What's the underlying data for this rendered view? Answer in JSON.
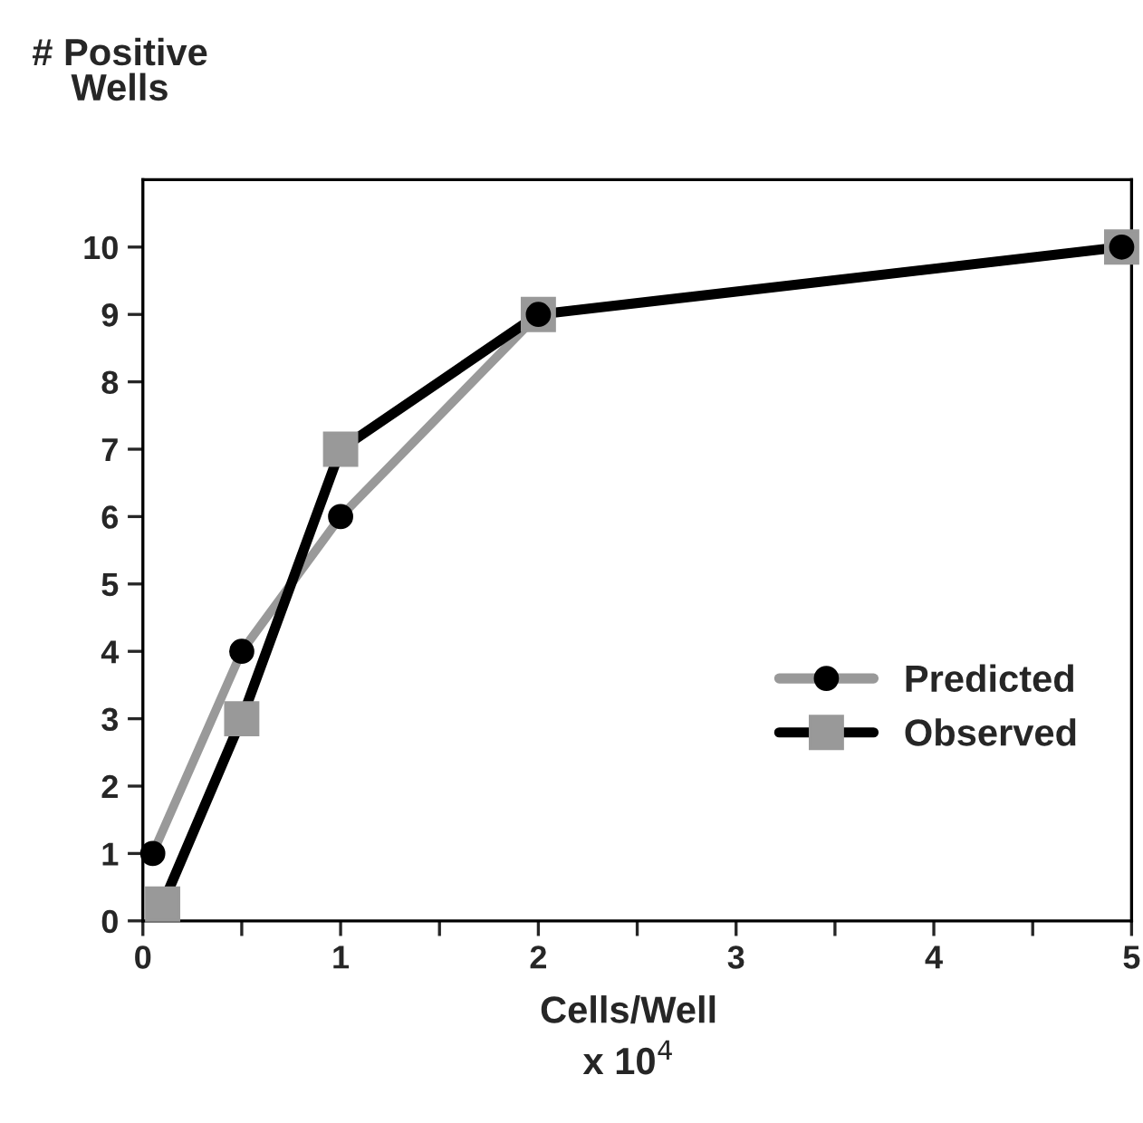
{
  "chart_data": {
    "type": "line",
    "ylabel": "# Positive\nWells",
    "xlabel": "Cells/Well\nx 10$^{4}$",
    "series": [
      {
        "name": "Predicted",
        "color": "#999999",
        "marker": "circle",
        "x": [
          0.05,
          0.5,
          1,
          2,
          4.95
        ],
        "values": [
          1,
          4,
          6,
          9,
          10
        ]
      },
      {
        "name": "Observed",
        "color": "#000000",
        "marker": "square",
        "x": [
          0.1,
          0.5,
          1,
          2,
          4.95
        ],
        "values": [
          0.25,
          3,
          7,
          9,
          10
        ]
      }
    ],
    "xlim": [
      0,
      5
    ],
    "xticks": [
      0,
      {
        "value": 0.5,
        "label": null
      },
      1,
      {
        "value": 1.5,
        "label": null
      },
      2,
      {
        "value": 2.5,
        "label": null
      },
      3,
      {
        "value": 3.5,
        "label": null
      },
      4,
      {
        "value": 4.5,
        "label": null
      },
      5
    ],
    "ylim": [
      0,
      11
    ],
    "yticks": [
      0,
      1,
      2,
      3,
      4,
      5,
      6,
      7,
      8,
      9,
      10
    ],
    "grid": false,
    "legend": "bottom right"
  }
}
